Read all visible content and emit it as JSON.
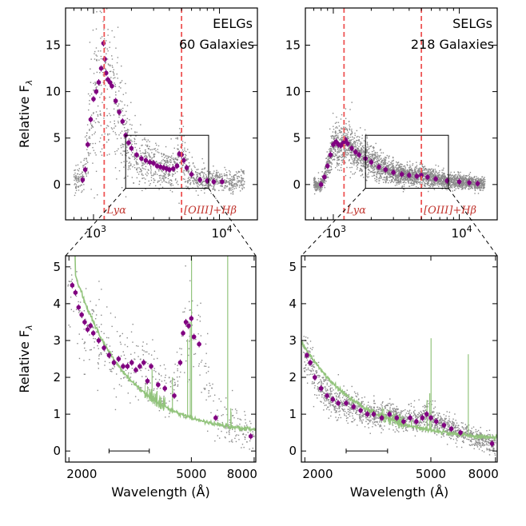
{
  "colors": {
    "scatter": "#8a8a8a",
    "binned": "#800080",
    "line_marker": "#ee5555",
    "template": "#93c47d",
    "annotation": "#c0322b"
  },
  "chart_data": [
    {
      "id": "top-left",
      "type": "scatter",
      "title": "EELGs",
      "subtitle": "60 Galaxies",
      "xlabel": "",
      "ylabel": "Relative F_λ",
      "xscale": "log",
      "xlim": [
        600,
        20000
      ],
      "ylim": [
        -3.8,
        19
      ],
      "yticks": [
        0,
        5,
        10,
        15
      ],
      "xticks": [
        {
          "value": 1000,
          "base": "10",
          "exp": "3"
        },
        {
          "value": 10000,
          "base": "10",
          "exp": "4"
        }
      ],
      "vlines": [
        {
          "x": 1216,
          "label": "Lyα"
        },
        {
          "x": 5000,
          "label": "[OIII]+Hβ"
        }
      ],
      "zoom_box": {
        "x": [
          1800,
          8200
        ],
        "y": [
          -0.4,
          5.3
        ]
      },
      "binned": {
        "x": [
          820,
          860,
          900,
          950,
          1000,
          1050,
          1100,
          1150,
          1200,
          1230,
          1260,
          1300,
          1350,
          1400,
          1500,
          1600,
          1700,
          1800,
          1900,
          2000,
          2200,
          2400,
          2600,
          2800,
          3000,
          3200,
          3400,
          3600,
          3800,
          4000,
          4300,
          4600,
          4800,
          5000,
          5200,
          5500,
          6000,
          7000,
          8000,
          9000,
          10500
        ],
        "y": [
          0.5,
          1.6,
          4.3,
          7.0,
          9.2,
          10.0,
          11.0,
          12.5,
          15.2,
          13.5,
          12.0,
          11.3,
          11.0,
          10.6,
          9.0,
          7.8,
          6.8,
          5.3,
          4.5,
          3.9,
          3.2,
          2.8,
          2.6,
          2.4,
          2.3,
          2.0,
          1.9,
          1.8,
          1.7,
          1.6,
          1.7,
          2.0,
          3.3,
          3.2,
          2.6,
          1.8,
          1.1,
          0.5,
          0.4,
          0.3,
          0.3
        ]
      },
      "scatter": {
        "seed": 7,
        "count": 1400,
        "xrange": [
          700,
          16000
        ],
        "noise": 1.4,
        "curve": "eelg"
      }
    },
    {
      "id": "top-right",
      "type": "scatter",
      "title": "SELGs",
      "subtitle": "218 Galaxies",
      "xlabel": "",
      "ylabel": "",
      "xscale": "log",
      "xlim": [
        600,
        20000
      ],
      "ylim": [
        -3.8,
        19
      ],
      "yticks": [
        0,
        5,
        10,
        15
      ],
      "xticks": [
        {
          "value": 1000,
          "base": "10",
          "exp": "3"
        },
        {
          "value": 10000,
          "base": "10",
          "exp": "4"
        }
      ],
      "vlines": [
        {
          "x": 1216,
          "label": "Lyα"
        },
        {
          "x": 5000,
          "label": "[OIII]+Hβ"
        }
      ],
      "zoom_box": {
        "x": [
          1800,
          8200
        ],
        "y": [
          -0.4,
          5.3
        ]
      },
      "binned": {
        "x": [
          800,
          850,
          900,
          950,
          1000,
          1050,
          1100,
          1150,
          1200,
          1250,
          1300,
          1400,
          1500,
          1600,
          1800,
          2000,
          2300,
          2600,
          3000,
          3500,
          4000,
          4600,
          5000,
          5600,
          6500,
          8000,
          10000,
          12000,
          14000
        ],
        "y": [
          0.0,
          0.8,
          2.0,
          3.2,
          4.3,
          4.6,
          4.3,
          4.2,
          4.5,
          4.8,
          4.4,
          3.9,
          3.5,
          3.2,
          2.8,
          2.4,
          1.9,
          1.6,
          1.3,
          1.1,
          1.0,
          0.9,
          1.0,
          0.8,
          0.6,
          0.4,
          0.3,
          0.2,
          0.1
        ]
      },
      "scatter": {
        "seed": 21,
        "count": 3200,
        "xrange": [
          700,
          16000
        ],
        "noise": 0.9,
        "curve": "selg"
      }
    },
    {
      "id": "bottom-left",
      "type": "scatter",
      "title": "",
      "xlabel": "Wavelength (Å)",
      "ylabel": "Relative F_λ",
      "xscale": "log",
      "xlim": [
        1950,
        8100
      ],
      "ylim": [
        -0.3,
        5.3
      ],
      "yticks": [
        0,
        1,
        2,
        3,
        4,
        5
      ],
      "xticks_labels": [
        {
          "value": 2000,
          "label": "2000"
        },
        {
          "value": 5000,
          "label": "5000"
        },
        {
          "value": 8000,
          "label": "8000"
        }
      ],
      "scale_bar": {
        "x": [
          2700,
          3650
        ],
        "y": 0.0
      },
      "binned": {
        "x": [
          2050,
          2100,
          2150,
          2200,
          2250,
          2300,
          2350,
          2400,
          2500,
          2600,
          2700,
          2800,
          2900,
          3000,
          3100,
          3200,
          3300,
          3400,
          3500,
          3600,
          3700,
          3900,
          4100,
          4400,
          4600,
          4700,
          4800,
          4900,
          5000,
          5100,
          5300,
          6000,
          7800
        ],
        "y": [
          4.5,
          4.3,
          3.9,
          3.7,
          3.5,
          3.3,
          3.4,
          3.2,
          3.0,
          2.8,
          2.6,
          2.4,
          2.5,
          2.3,
          2.3,
          2.4,
          2.2,
          2.3,
          2.4,
          1.9,
          2.3,
          1.8,
          1.7,
          1.5,
          2.4,
          3.2,
          3.5,
          3.4,
          3.6,
          3.1,
          2.9,
          0.9,
          0.4
        ]
      },
      "scatter": {
        "seed": 11,
        "count": 500,
        "xrange": [
          1980,
          8000
        ],
        "noise": 0.55,
        "curve": "eelg_zoom"
      },
      "template": {
        "curve": "eelg_template",
        "lines": [
          {
            "x": 3727,
            "h": 0.8
          },
          {
            "x": 3869,
            "h": 0.3
          },
          {
            "x": 4102,
            "h": 0.25
          },
          {
            "x": 4340,
            "h": 0.9
          },
          {
            "x": 4861,
            "h": 2.1
          },
          {
            "x": 4959,
            "h": 2.6
          },
          {
            "x": 5007,
            "h": 4.4
          },
          {
            "x": 6563,
            "h": 4.8
          },
          {
            "x": 6716,
            "h": 0.5
          },
          {
            "x": 6731,
            "h": 0.4
          }
        ]
      }
    },
    {
      "id": "bottom-right",
      "type": "scatter",
      "title": "",
      "xlabel": "Wavelength (Å)",
      "ylabel": "",
      "xscale": "log",
      "xlim": [
        1950,
        8100
      ],
      "ylim": [
        -0.3,
        5.3
      ],
      "yticks": [
        0,
        1,
        2,
        3,
        4,
        5
      ],
      "xticks_labels": [
        {
          "value": 2000,
          "label": "2000"
        },
        {
          "value": 5000,
          "label": "5000"
        },
        {
          "value": 8000,
          "label": "8000"
        }
      ],
      "scale_bar": {
        "x": [
          2700,
          3650
        ],
        "y": 0.0
      },
      "binned": {
        "x": [
          2030,
          2080,
          2150,
          2250,
          2350,
          2450,
          2550,
          2700,
          2850,
          3000,
          3150,
          3300,
          3500,
          3700,
          3900,
          4100,
          4300,
          4500,
          4700,
          4850,
          5000,
          5200,
          5500,
          5800,
          6200,
          7800
        ],
        "y": [
          2.6,
          2.4,
          2.0,
          1.7,
          1.5,
          1.4,
          1.3,
          1.3,
          1.2,
          1.1,
          1.0,
          1.0,
          0.9,
          1.0,
          0.9,
          0.8,
          0.9,
          0.8,
          0.9,
          1.0,
          0.9,
          0.8,
          0.7,
          0.6,
          0.5,
          0.2
        ]
      },
      "scatter": {
        "seed": 33,
        "count": 1600,
        "xrange": [
          1980,
          8000
        ],
        "noise": 0.3,
        "curve": "selg_zoom"
      },
      "template": {
        "curve": "selg_template",
        "lines": [
          {
            "x": 3727,
            "h": 0.2
          },
          {
            "x": 4340,
            "h": 0.15
          },
          {
            "x": 4861,
            "h": 0.8
          },
          {
            "x": 4959,
            "h": 1.0
          },
          {
            "x": 5007,
            "h": 2.5
          },
          {
            "x": 6563,
            "h": 2.2
          }
        ]
      }
    }
  ]
}
